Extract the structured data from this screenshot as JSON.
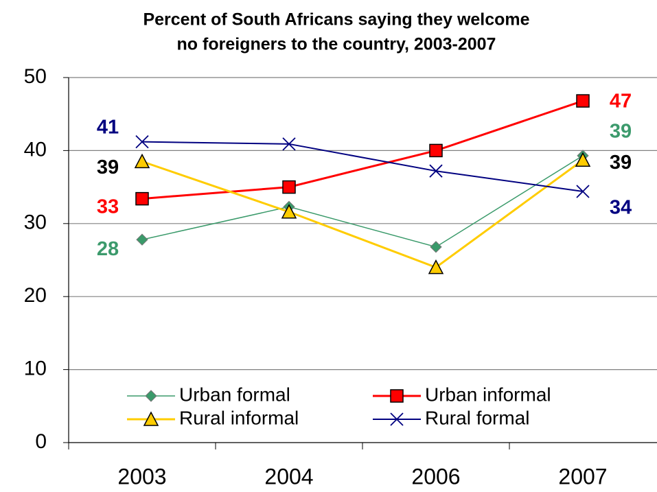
{
  "chart_data": {
    "type": "line",
    "title": [
      "Percent of South Africans saying they welcome",
      "no foreigners to the country, 2003-2007"
    ],
    "categories": [
      "2003",
      "2004",
      "2006",
      "2007"
    ],
    "ylim": [
      0,
      50
    ],
    "yticks": [
      0,
      10,
      20,
      30,
      40,
      50
    ],
    "grid": true,
    "series": [
      {
        "name": "Urban formal",
        "color": "#3a9a6a",
        "label_color": "#3c9a6c",
        "marker": "diamond",
        "values": [
          27.8,
          32.3,
          26.8,
          39.3
        ],
        "value_labels": [
          "28",
          null,
          null,
          "39"
        ]
      },
      {
        "name": "Urban informal",
        "color": "#ff0000",
        "label_color": "#ff0000",
        "marker": "square",
        "values": [
          33.4,
          35.0,
          40.0,
          46.8
        ],
        "value_labels": [
          "33",
          null,
          null,
          "47"
        ]
      },
      {
        "name": "Rural informal",
        "color": "#ffcc00",
        "label_color": "#000000",
        "marker": "triangle",
        "values": [
          38.5,
          31.6,
          24.0,
          38.7
        ],
        "value_labels": [
          "39",
          null,
          null,
          "39"
        ]
      },
      {
        "name": "Rural formal",
        "color": "#000080",
        "label_color": "#000080",
        "marker": "x",
        "values": [
          41.2,
          40.9,
          37.2,
          34.4
        ],
        "value_labels": [
          "41",
          null,
          null,
          "34"
        ]
      }
    ]
  }
}
